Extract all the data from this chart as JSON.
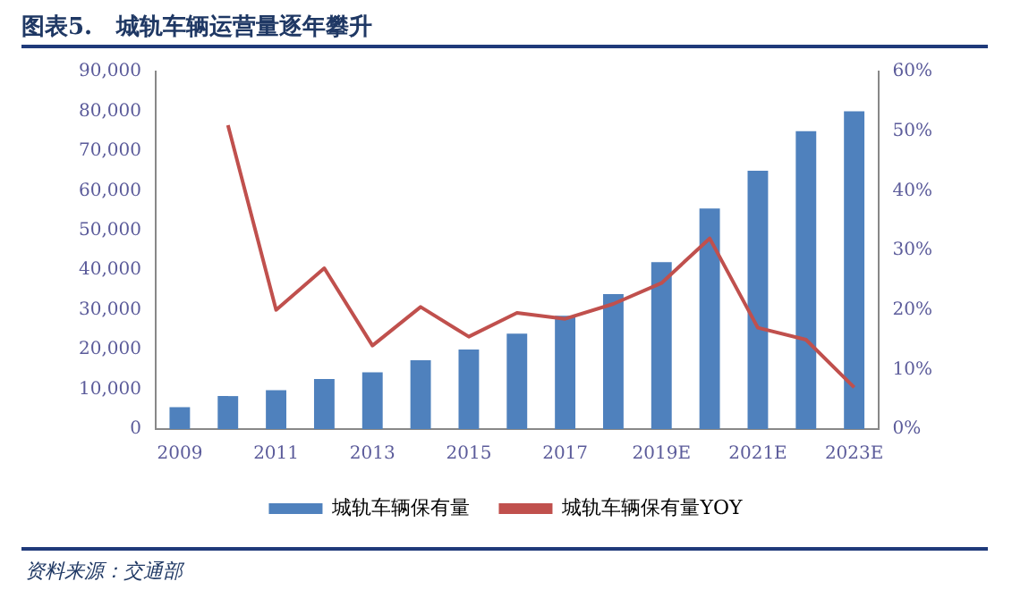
{
  "chart_data": {
    "type": "bar",
    "title": "图表5.   城轨车辆运营量逐年攀升",
    "categories": [
      "2009",
      null,
      "2011",
      null,
      "2013",
      null,
      "2015",
      null,
      "2017",
      null,
      "2019E",
      null,
      "2021E",
      null,
      "2023E"
    ],
    "series": [
      {
        "name": "城轨车辆保有量",
        "color": "#4f81bd",
        "values": [
          5500,
          8300,
          9800,
          12600,
          14300,
          17300,
          20000,
          24000,
          28500,
          34000,
          42000,
          55500,
          65000,
          75000,
          80000
        ]
      },
      {
        "name": "城轨车辆保有量YOY",
        "type": "line",
        "axis": "y2",
        "color": "#c0504d",
        "values": [
          null,
          51,
          20,
          27,
          14,
          20.5,
          15.5,
          19.5,
          18.5,
          21,
          24.5,
          32,
          17,
          15,
          7
        ]
      }
    ],
    "ylim": [
      0,
      90000
    ],
    "yticks": [
      {
        "value": 0,
        "label": "0"
      },
      {
        "value": 10000,
        "label": "10,000"
      },
      {
        "value": 20000,
        "label": "20,000"
      },
      {
        "value": 30000,
        "label": "30,000"
      },
      {
        "value": 40000,
        "label": "40,000"
      },
      {
        "value": 50000,
        "label": "50,000"
      },
      {
        "value": 60000,
        "label": "60,000"
      },
      {
        "value": 70000,
        "label": "70,000"
      },
      {
        "value": 80000,
        "label": "80,000"
      },
      {
        "value": 90000,
        "label": "90,000"
      }
    ],
    "y2lim": [
      0,
      60
    ],
    "y2ticks": [
      {
        "value": 0,
        "label": "0%"
      },
      {
        "value": 10,
        "label": "10%"
      },
      {
        "value": 20,
        "label": "20%"
      },
      {
        "value": 30,
        "label": "30%"
      },
      {
        "value": 40,
        "label": "40%"
      },
      {
        "value": 50,
        "label": "50%"
      },
      {
        "value": 60,
        "label": "60%"
      }
    ],
    "grid": false,
    "legend": "bottom",
    "marker": "none",
    "annotations": [
      "资料来源：交通部"
    ]
  }
}
